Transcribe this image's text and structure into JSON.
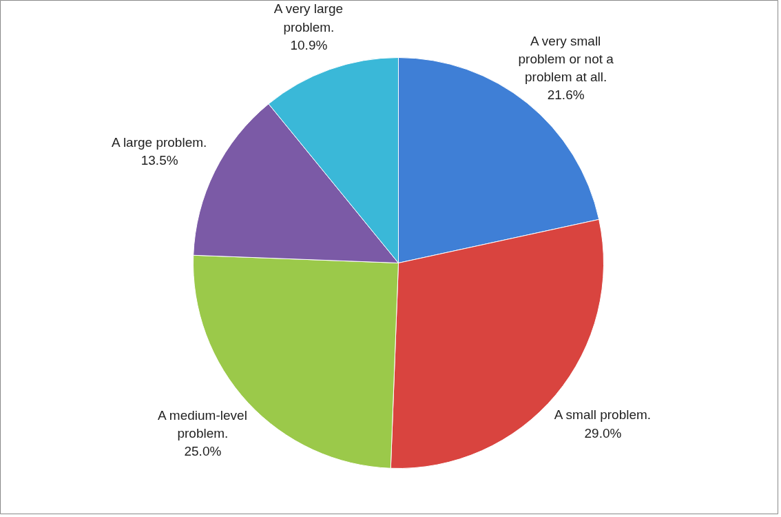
{
  "chart_data": {
    "type": "pie",
    "categories": [
      "A very small problem or not a problem at all.",
      "A small problem.",
      "A medium-level problem.",
      "A large problem.",
      "A very large problem."
    ],
    "values": [
      21.6,
      29.0,
      25.0,
      13.5,
      10.9
    ],
    "value_labels": [
      "21.6%",
      "29.0%",
      "25.0%",
      "13.5%",
      "10.9%"
    ],
    "colors": [
      "#3f7fd6",
      "#d9443f",
      "#9bc94a",
      "#7b5aa6",
      "#3ab8d8"
    ]
  }
}
